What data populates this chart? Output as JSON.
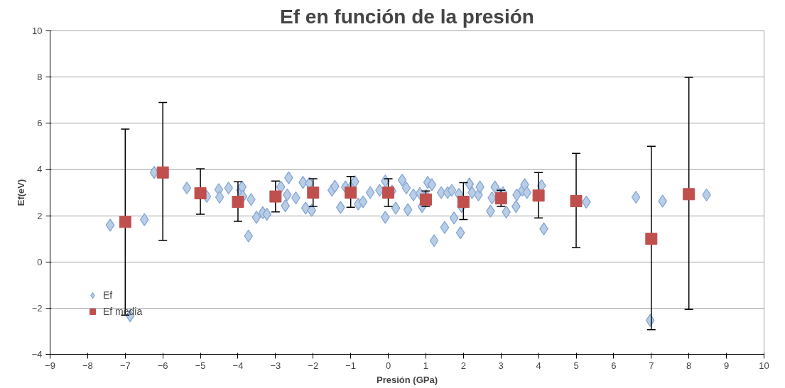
{
  "chart_data": {
    "type": "scatter",
    "title": "Ef en función de la presión",
    "xlabel": "Presión (GPa)",
    "ylabel": "Ef(eV)",
    "xlim": [
      -9,
      10
    ],
    "xticks": [
      -9,
      -8,
      -7,
      -6,
      -5,
      -4,
      -3,
      -2,
      -1,
      0,
      1,
      2,
      3,
      4,
      5,
      6,
      7,
      8,
      9,
      10
    ],
    "ylim": [
      -4,
      10
    ],
    "yticks": [
      -4,
      -2,
      0,
      2,
      4,
      6,
      8,
      10
    ],
    "grid": "y",
    "legend": "bottom left",
    "series": [
      {
        "name": "Ef",
        "color": "#b9cde5",
        "marker": "diamond",
        "x": [
          -7.4,
          -6.49,
          -6.23,
          -5.36,
          -4.83,
          -4.51,
          -4.49,
          -4.25,
          -3.93,
          -3.89,
          -3.87,
          -3.72,
          -3.65,
          -3.51,
          -3.34,
          -3.23,
          -2.86,
          -2.74,
          -2.69,
          -2.65,
          -2.46,
          -2.27,
          -2.2,
          -2.1,
          -2.04,
          -1.99,
          -1.5,
          -1.42,
          -1.27,
          -1.14,
          -0.99,
          -0.89,
          -0.8,
          -0.67,
          -0.48,
          -0.23,
          -0.08,
          -0.08,
          0.1,
          0.2,
          0.37,
          0.48,
          0.52,
          0.67,
          0.84,
          0.9,
          1.01,
          1.05,
          1.16,
          1.22,
          1.41,
          1.5,
          1.58,
          1.69,
          1.75,
          1.88,
          1.92,
          1.95,
          2.07,
          2.16,
          2.23,
          2.4,
          2.44,
          2.72,
          2.76,
          2.84,
          2.97,
          3.05,
          3.14,
          3.4,
          3.42,
          3.57,
          3.63,
          3.69,
          4.0,
          4.08,
          4.14,
          5.27,
          6.59,
          7.3,
          8.47,
          6.97,
          -6.87
        ],
        "values": [
          1.59,
          1.83,
          3.87,
          3.2,
          2.83,
          3.13,
          2.8,
          3.2,
          3.1,
          3.24,
          2.83,
          1.12,
          2.7,
          1.93,
          2.13,
          2.06,
          3.24,
          2.43,
          2.9,
          3.64,
          2.77,
          3.44,
          2.33,
          3.4,
          2.23,
          null,
          3.1,
          3.27,
          2.36,
          3.24,
          3.24,
          3.47,
          2.5,
          2.6,
          3.0,
          3.1,
          1.93,
          3.5,
          3.07,
          2.33,
          3.54,
          3.2,
          2.26,
          2.9,
          2.97,
          2.4,
          2.87,
          3.44,
          3.34,
          0.92,
          3.0,
          1.49,
          3.0,
          3.1,
          1.9,
          2.93,
          1.26,
          2.4,
          null,
          3.37,
          3.0,
          2.9,
          3.24,
          2.2,
          2.77,
          3.24,
          2.93,
          3.0,
          2.16,
          2.4,
          2.9,
          3.1,
          3.34,
          3.0,
          null,
          3.3,
          1.43,
          2.59,
          2.8,
          2.63,
          2.9,
          -2.53,
          -2.33
        ]
      },
      {
        "name": "Ef media",
        "color": "#c0504d",
        "marker": "square",
        "x": [
          -7,
          -6,
          -5,
          -4,
          -3,
          -2,
          -1,
          0,
          1,
          2,
          3,
          4,
          5,
          7,
          8
        ],
        "values": [
          1.73,
          3.87,
          2.97,
          2.6,
          2.83,
          3.0,
          3.0,
          3.0,
          2.7,
          2.6,
          2.75,
          2.87,
          2.63,
          1.0,
          2.93
        ],
        "errors": [
          [
            -2.3,
            5.75
          ],
          [
            0.93,
            6.9
          ],
          [
            2.06,
            4.03
          ],
          [
            1.76,
            3.47
          ],
          [
            2.16,
            3.5
          ],
          [
            2.4,
            3.6
          ],
          [
            2.36,
            3.7
          ],
          [
            2.4,
            3.6
          ],
          [
            2.4,
            3.07
          ],
          [
            1.83,
            3.43
          ],
          [
            2.4,
            3.1
          ],
          [
            1.9,
            3.87
          ],
          [
            0.62,
            4.7
          ],
          [
            -2.93,
            5.0
          ],
          [
            -2.06,
            7.99
          ]
        ]
      }
    ]
  }
}
